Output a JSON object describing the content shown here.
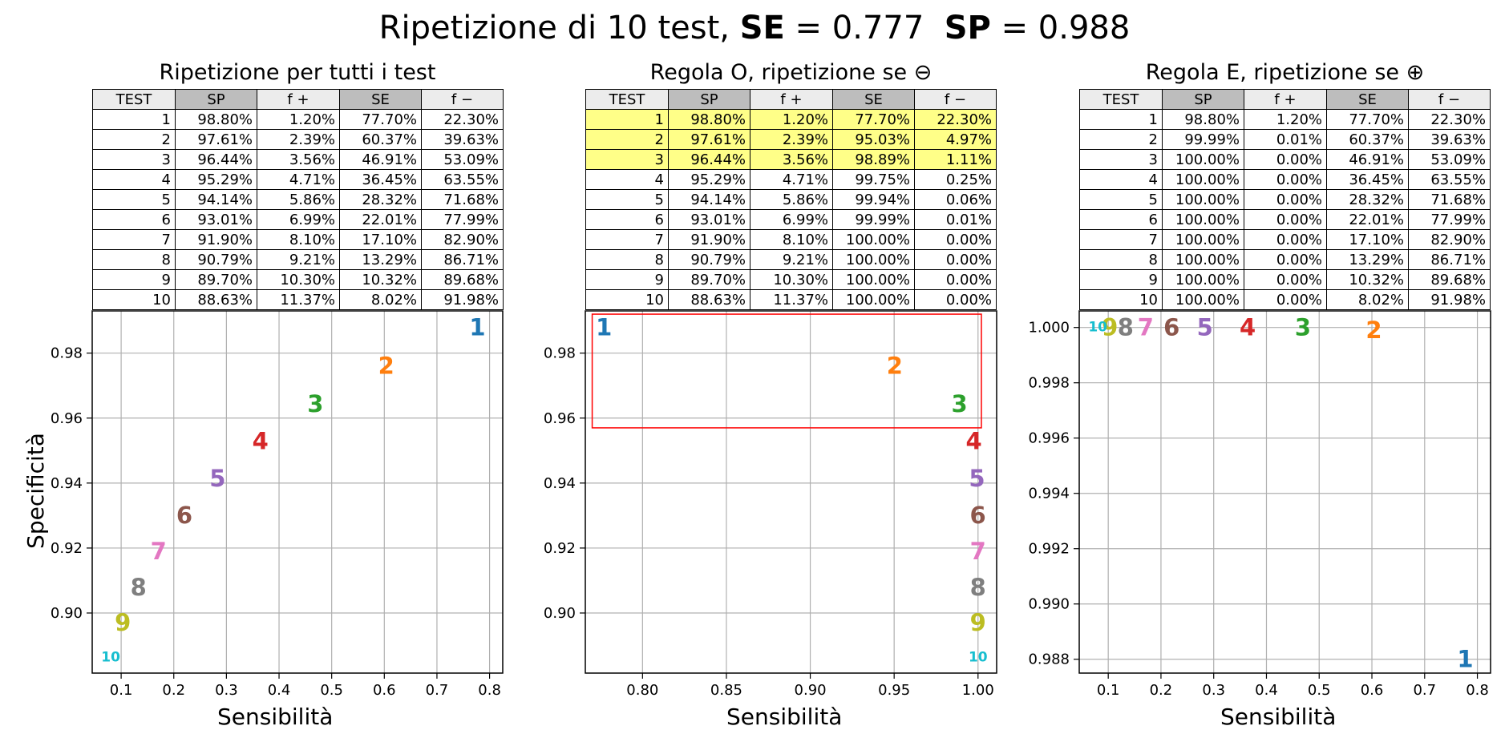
{
  "suptitle": {
    "prefix": "Ripetizione di 10 test, ",
    "se_label": "SE",
    "se_eq": " = 0.777  ",
    "sp_label": "SP",
    "sp_eq": " = 0.988"
  },
  "chart_data": [
    {
      "type": "table",
      "title": "Ripetizione per tutti i test",
      "columns": [
        "TEST",
        "SP",
        "f +",
        "SE",
        "f −"
      ],
      "rows": [
        [
          "1",
          "98.80%",
          "1.20%",
          "77.70%",
          "22.30%"
        ],
        [
          "2",
          "97.61%",
          "2.39%",
          "60.37%",
          "39.63%"
        ],
        [
          "3",
          "96.44%",
          "3.56%",
          "46.91%",
          "53.09%"
        ],
        [
          "4",
          "95.29%",
          "4.71%",
          "36.45%",
          "63.55%"
        ],
        [
          "5",
          "94.14%",
          "5.86%",
          "28.32%",
          "71.68%"
        ],
        [
          "6",
          "93.01%",
          "6.99%",
          "22.01%",
          "77.99%"
        ],
        [
          "7",
          "91.90%",
          "8.10%",
          "17.10%",
          "82.90%"
        ],
        [
          "8",
          "90.79%",
          "9.21%",
          "13.29%",
          "86.71%"
        ],
        [
          "9",
          "89.70%",
          "10.30%",
          "10.32%",
          "89.68%"
        ],
        [
          "10",
          "88.63%",
          "11.37%",
          "8.02%",
          "91.98%"
        ]
      ],
      "highlight_rows": [],
      "plot": {
        "type": "scatter",
        "xlabel": "Sensibilità",
        "ylabel": "Specificità",
        "xlim": [
          0.045,
          0.825
        ],
        "ylim": [
          0.8815,
          0.993
        ],
        "xticks": [
          "0.1",
          "0.2",
          "0.3",
          "0.4",
          "0.5",
          "0.6",
          "0.7",
          "0.8"
        ],
        "yticks": [
          "0.90",
          "0.92",
          "0.94",
          "0.96",
          "0.98"
        ],
        "grid": true,
        "points": [
          {
            "label": "1",
            "x": 0.777,
            "y": 0.988
          },
          {
            "label": "2",
            "x": 0.6037,
            "y": 0.9761
          },
          {
            "label": "3",
            "x": 0.4691,
            "y": 0.9644
          },
          {
            "label": "4",
            "x": 0.3645,
            "y": 0.9529
          },
          {
            "label": "5",
            "x": 0.2832,
            "y": 0.9414
          },
          {
            "label": "6",
            "x": 0.2201,
            "y": 0.9301
          },
          {
            "label": "7",
            "x": 0.171,
            "y": 0.919
          },
          {
            "label": "8",
            "x": 0.1329,
            "y": 0.9079
          },
          {
            "label": "9",
            "x": 0.1032,
            "y": 0.897
          },
          {
            "label": "10",
            "x": 0.0802,
            "y": 0.8863
          }
        ]
      }
    },
    {
      "type": "table",
      "title": "Regola O, ripetizione se ⊖",
      "columns": [
        "TEST",
        "SP",
        "f +",
        "SE",
        "f −"
      ],
      "rows": [
        [
          "1",
          "98.80%",
          "1.20%",
          "77.70%",
          "22.30%"
        ],
        [
          "2",
          "97.61%",
          "2.39%",
          "95.03%",
          "4.97%"
        ],
        [
          "3",
          "96.44%",
          "3.56%",
          "98.89%",
          "1.11%"
        ],
        [
          "4",
          "95.29%",
          "4.71%",
          "99.75%",
          "0.25%"
        ],
        [
          "5",
          "94.14%",
          "5.86%",
          "99.94%",
          "0.06%"
        ],
        [
          "6",
          "93.01%",
          "6.99%",
          "99.99%",
          "0.01%"
        ],
        [
          "7",
          "91.90%",
          "8.10%",
          "100.00%",
          "0.00%"
        ],
        [
          "8",
          "90.79%",
          "9.21%",
          "100.00%",
          "0.00%"
        ],
        [
          "9",
          "89.70%",
          "10.30%",
          "100.00%",
          "0.00%"
        ],
        [
          "10",
          "88.63%",
          "11.37%",
          "100.00%",
          "0.00%"
        ]
      ],
      "highlight_rows": [
        0,
        1,
        2
      ],
      "plot": {
        "type": "scatter",
        "xlabel": "Sensibilità",
        "ylabel": "",
        "xlim": [
          0.7659,
          1.0111
        ],
        "ylim": [
          0.8815,
          0.993
        ],
        "xticks": [
          "0.80",
          "0.85",
          "0.90",
          "0.95",
          "1.00"
        ],
        "yticks": [
          "0.90",
          "0.92",
          "0.94",
          "0.96",
          "0.98"
        ],
        "grid": true,
        "highlight_box": {
          "x0": 0.77,
          "x1": 1.002,
          "y0": 0.957,
          "y1": 0.992
        },
        "points": [
          {
            "label": "1",
            "x": 0.777,
            "y": 0.988
          },
          {
            "label": "2",
            "x": 0.9503,
            "y": 0.9761
          },
          {
            "label": "3",
            "x": 0.9889,
            "y": 0.9644
          },
          {
            "label": "4",
            "x": 0.9975,
            "y": 0.9529
          },
          {
            "label": "5",
            "x": 0.9994,
            "y": 0.9414
          },
          {
            "label": "6",
            "x": 0.9999,
            "y": 0.9301
          },
          {
            "label": "7",
            "x": 1.0,
            "y": 0.919
          },
          {
            "label": "8",
            "x": 1.0,
            "y": 0.9079
          },
          {
            "label": "9",
            "x": 1.0,
            "y": 0.897
          },
          {
            "label": "10",
            "x": 1.0,
            "y": 0.8863
          }
        ]
      }
    },
    {
      "type": "table",
      "title": "Regola E, ripetizione se ⊕",
      "columns": [
        "TEST",
        "SP",
        "f +",
        "SE",
        "f −"
      ],
      "rows": [
        [
          "1",
          "98.80%",
          "1.20%",
          "77.70%",
          "22.30%"
        ],
        [
          "2",
          "99.99%",
          "0.01%",
          "60.37%",
          "39.63%"
        ],
        [
          "3",
          "100.00%",
          "0.00%",
          "46.91%",
          "53.09%"
        ],
        [
          "4",
          "100.00%",
          "0.00%",
          "36.45%",
          "63.55%"
        ],
        [
          "5",
          "100.00%",
          "0.00%",
          "28.32%",
          "71.68%"
        ],
        [
          "6",
          "100.00%",
          "0.00%",
          "22.01%",
          "77.99%"
        ],
        [
          "7",
          "100.00%",
          "0.00%",
          "17.10%",
          "82.90%"
        ],
        [
          "8",
          "100.00%",
          "0.00%",
          "13.29%",
          "86.71%"
        ],
        [
          "9",
          "100.00%",
          "0.00%",
          "10.32%",
          "89.68%"
        ],
        [
          "10",
          "100.00%",
          "0.00%",
          "8.02%",
          "91.98%"
        ]
      ],
      "highlight_rows": [],
      "plot": {
        "type": "scatter",
        "xlabel": "Sensibilità",
        "ylabel": "",
        "xlim": [
          0.045,
          0.825
        ],
        "ylim": [
          0.9875,
          1.0006
        ],
        "xticks": [
          "0.1",
          "0.2",
          "0.3",
          "0.4",
          "0.5",
          "0.6",
          "0.7",
          "0.8"
        ],
        "yticks": [
          "0.988",
          "0.990",
          "0.992",
          "0.994",
          "0.996",
          "0.998",
          "1.000"
        ],
        "grid": true,
        "points": [
          {
            "label": "1",
            "x": 0.777,
            "y": 0.988
          },
          {
            "label": "2",
            "x": 0.6037,
            "y": 0.9999
          },
          {
            "label": "3",
            "x": 0.4691,
            "y": 1.0
          },
          {
            "label": "4",
            "x": 0.3645,
            "y": 1.0
          },
          {
            "label": "5",
            "x": 0.2832,
            "y": 1.0
          },
          {
            "label": "6",
            "x": 0.2201,
            "y": 1.0
          },
          {
            "label": "7",
            "x": 0.171,
            "y": 1.0
          },
          {
            "label": "8",
            "x": 0.1329,
            "y": 1.0
          },
          {
            "label": "9",
            "x": 0.1032,
            "y": 1.0
          },
          {
            "label": "10",
            "x": 0.0802,
            "y": 1.0
          }
        ]
      }
    }
  ],
  "colors": [
    "#1f77b4",
    "#ff7f0e",
    "#2ca02c",
    "#d62728",
    "#9467bd",
    "#8c564b",
    "#e377c2",
    "#7f7f7f",
    "#bcbd22",
    "#17becf"
  ],
  "highlight_color": "#ffff88",
  "box_color": "#ff0000"
}
